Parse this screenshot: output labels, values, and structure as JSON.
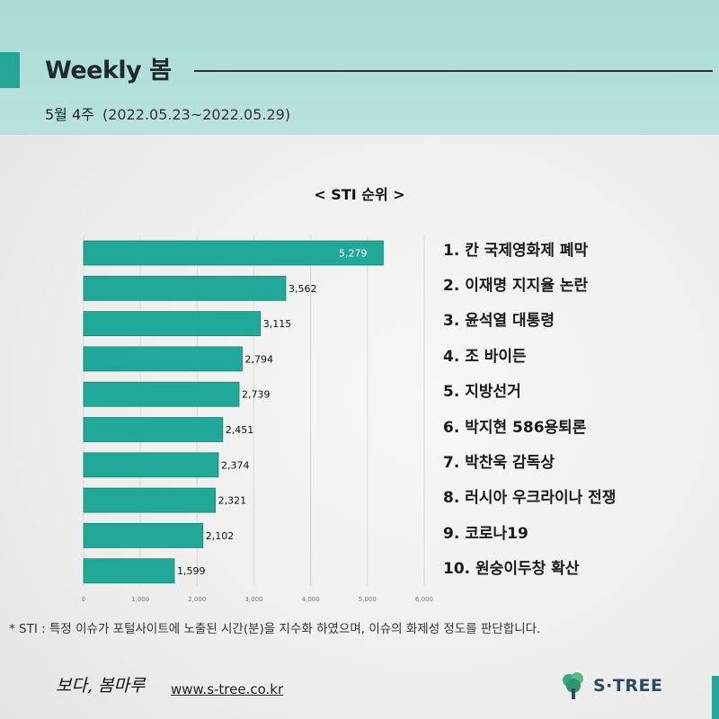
{
  "header": {
    "title": "Weekly 봄",
    "week_label": "5월 4주",
    "date_range": "(2022.05.23~2022.05.29)"
  },
  "chart_data": {
    "type": "bar",
    "orientation": "horizontal",
    "title": "< STI 순위 >",
    "categories": [
      "칸 국제영화제 폐막",
      "이재명 지지율 논란",
      "윤석열 대통령",
      "조 바이든",
      "지방선거",
      "박지현 586용퇴론",
      "박찬욱 감독상",
      "러시아 우크라이나 전쟁",
      "코로나19",
      "원숭이두창 확산"
    ],
    "values": [
      5279,
      3562,
      3115,
      2794,
      2739,
      2451,
      2374,
      2321,
      2102,
      1599
    ],
    "value_labels": [
      "5,279",
      "3,562",
      "3,115",
      "2,794",
      "2,739",
      "2,451",
      "2,374",
      "2,321",
      "2,102",
      "1,599"
    ],
    "xlim": [
      0,
      6000
    ],
    "x_ticks": [
      0,
      1000,
      2000,
      3000,
      4000,
      5000,
      6000
    ],
    "x_tick_labels": [
      "0",
      "1,000",
      "2,000",
      "3,000",
      "4,000",
      "5,000",
      "6,000"
    ],
    "grid": true,
    "bar_color": "#20a898"
  },
  "rankings": [
    "1. 칸 국제영화제 폐막",
    "2. 이재명 지지율 논란",
    "3. 윤석열 대통령",
    "4. 조 바이든",
    "5. 지방선거",
    "6. 박지현 586용퇴론",
    "7. 박찬욱 감독상",
    "8. 러시아 우크라이나 전쟁",
    "9. 코로나19",
    "10. 원숭이두창 확산"
  ],
  "footnote": "* STI : 특정 이슈가 포털사이트에 노출된 시간(분)을 지수화 하였으며, 이슈의 화제성 정도를 판단합니다.",
  "footer": {
    "signature": "보다, 봄마루",
    "website": "www.s-tree.co.kr",
    "logo_text": "S·TREE"
  },
  "colors": {
    "accent": "#25a596",
    "header_bg": "#b2dfd9"
  }
}
